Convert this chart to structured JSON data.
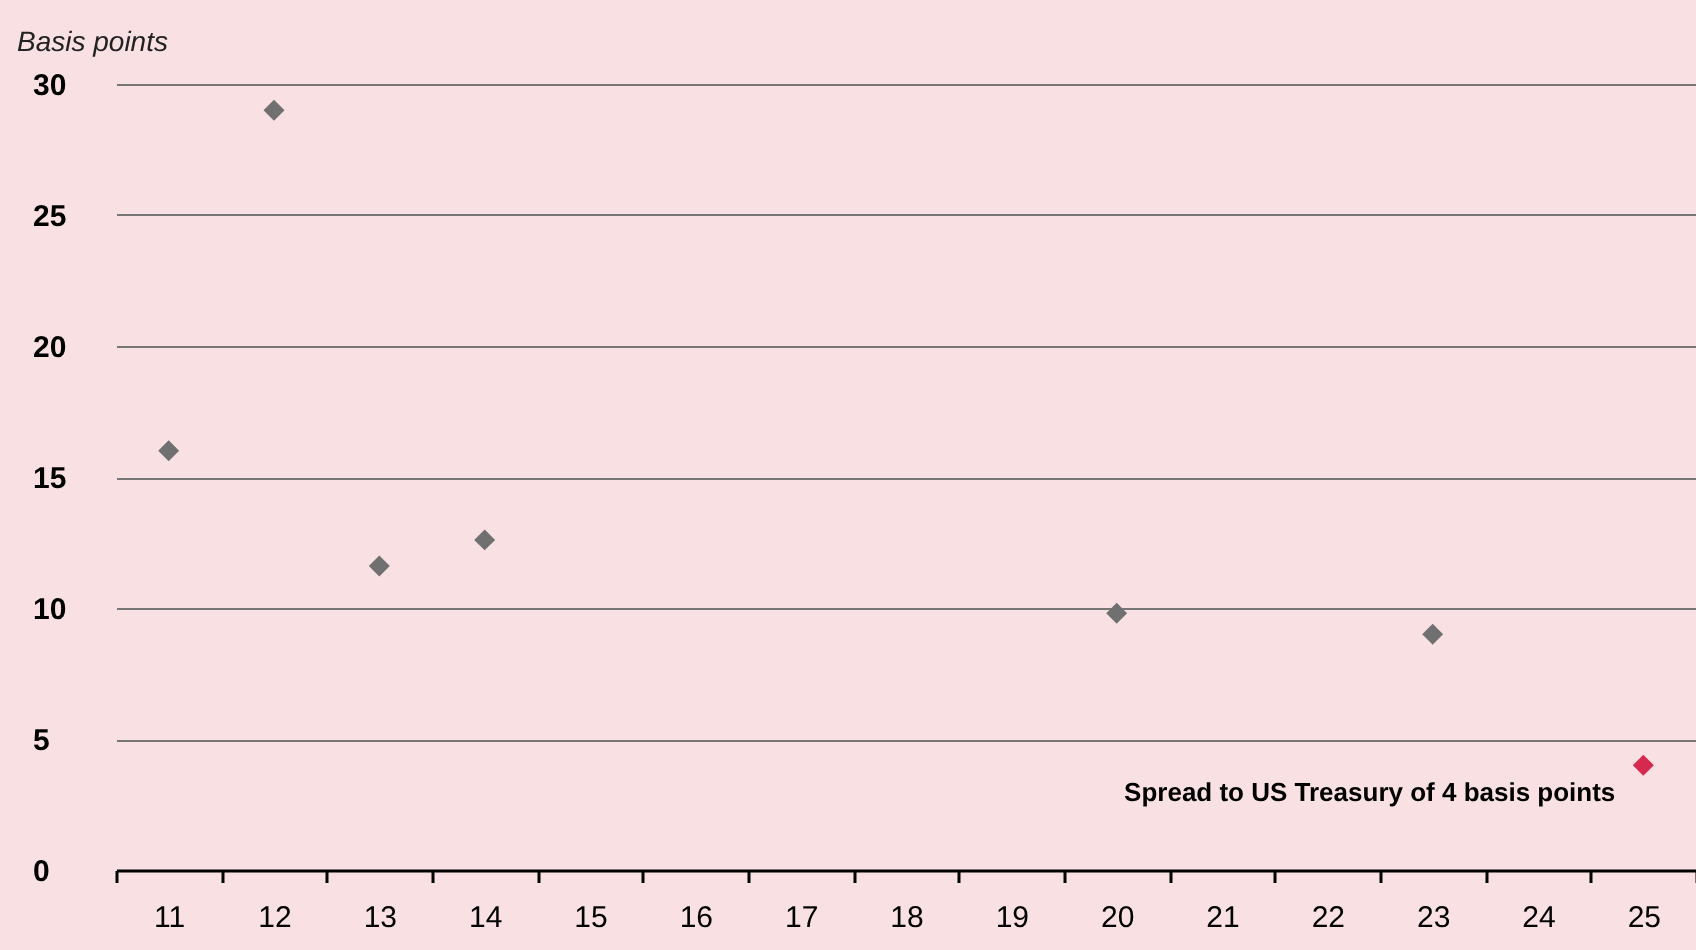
{
  "chart_data": {
    "type": "scatter",
    "ylabel": "Basis points",
    "categories": [
      "11",
      "12",
      "13",
      "14",
      "15",
      "16",
      "17",
      "18",
      "19",
      "20",
      "21",
      "22",
      "23",
      "24",
      "25"
    ],
    "series": [
      {
        "color": "#707070",
        "values": [
          16,
          29,
          11.6,
          12.6,
          null,
          null,
          null,
          null,
          null,
          9.8,
          null,
          null,
          9,
          null,
          null
        ]
      },
      {
        "color": "#d6294f",
        "values": [
          null,
          null,
          null,
          null,
          null,
          null,
          null,
          null,
          null,
          null,
          null,
          null,
          null,
          null,
          4
        ]
      }
    ],
    "ylim": [
      0,
      30
    ],
    "yticks": [
      0,
      5,
      10,
      15,
      20,
      25,
      30
    ],
    "grid": "y",
    "marker": "diamond",
    "annotations": [
      {
        "text": "Spread to US Treasury of 4 basis points",
        "x": "25",
        "y": 4
      }
    ]
  }
}
